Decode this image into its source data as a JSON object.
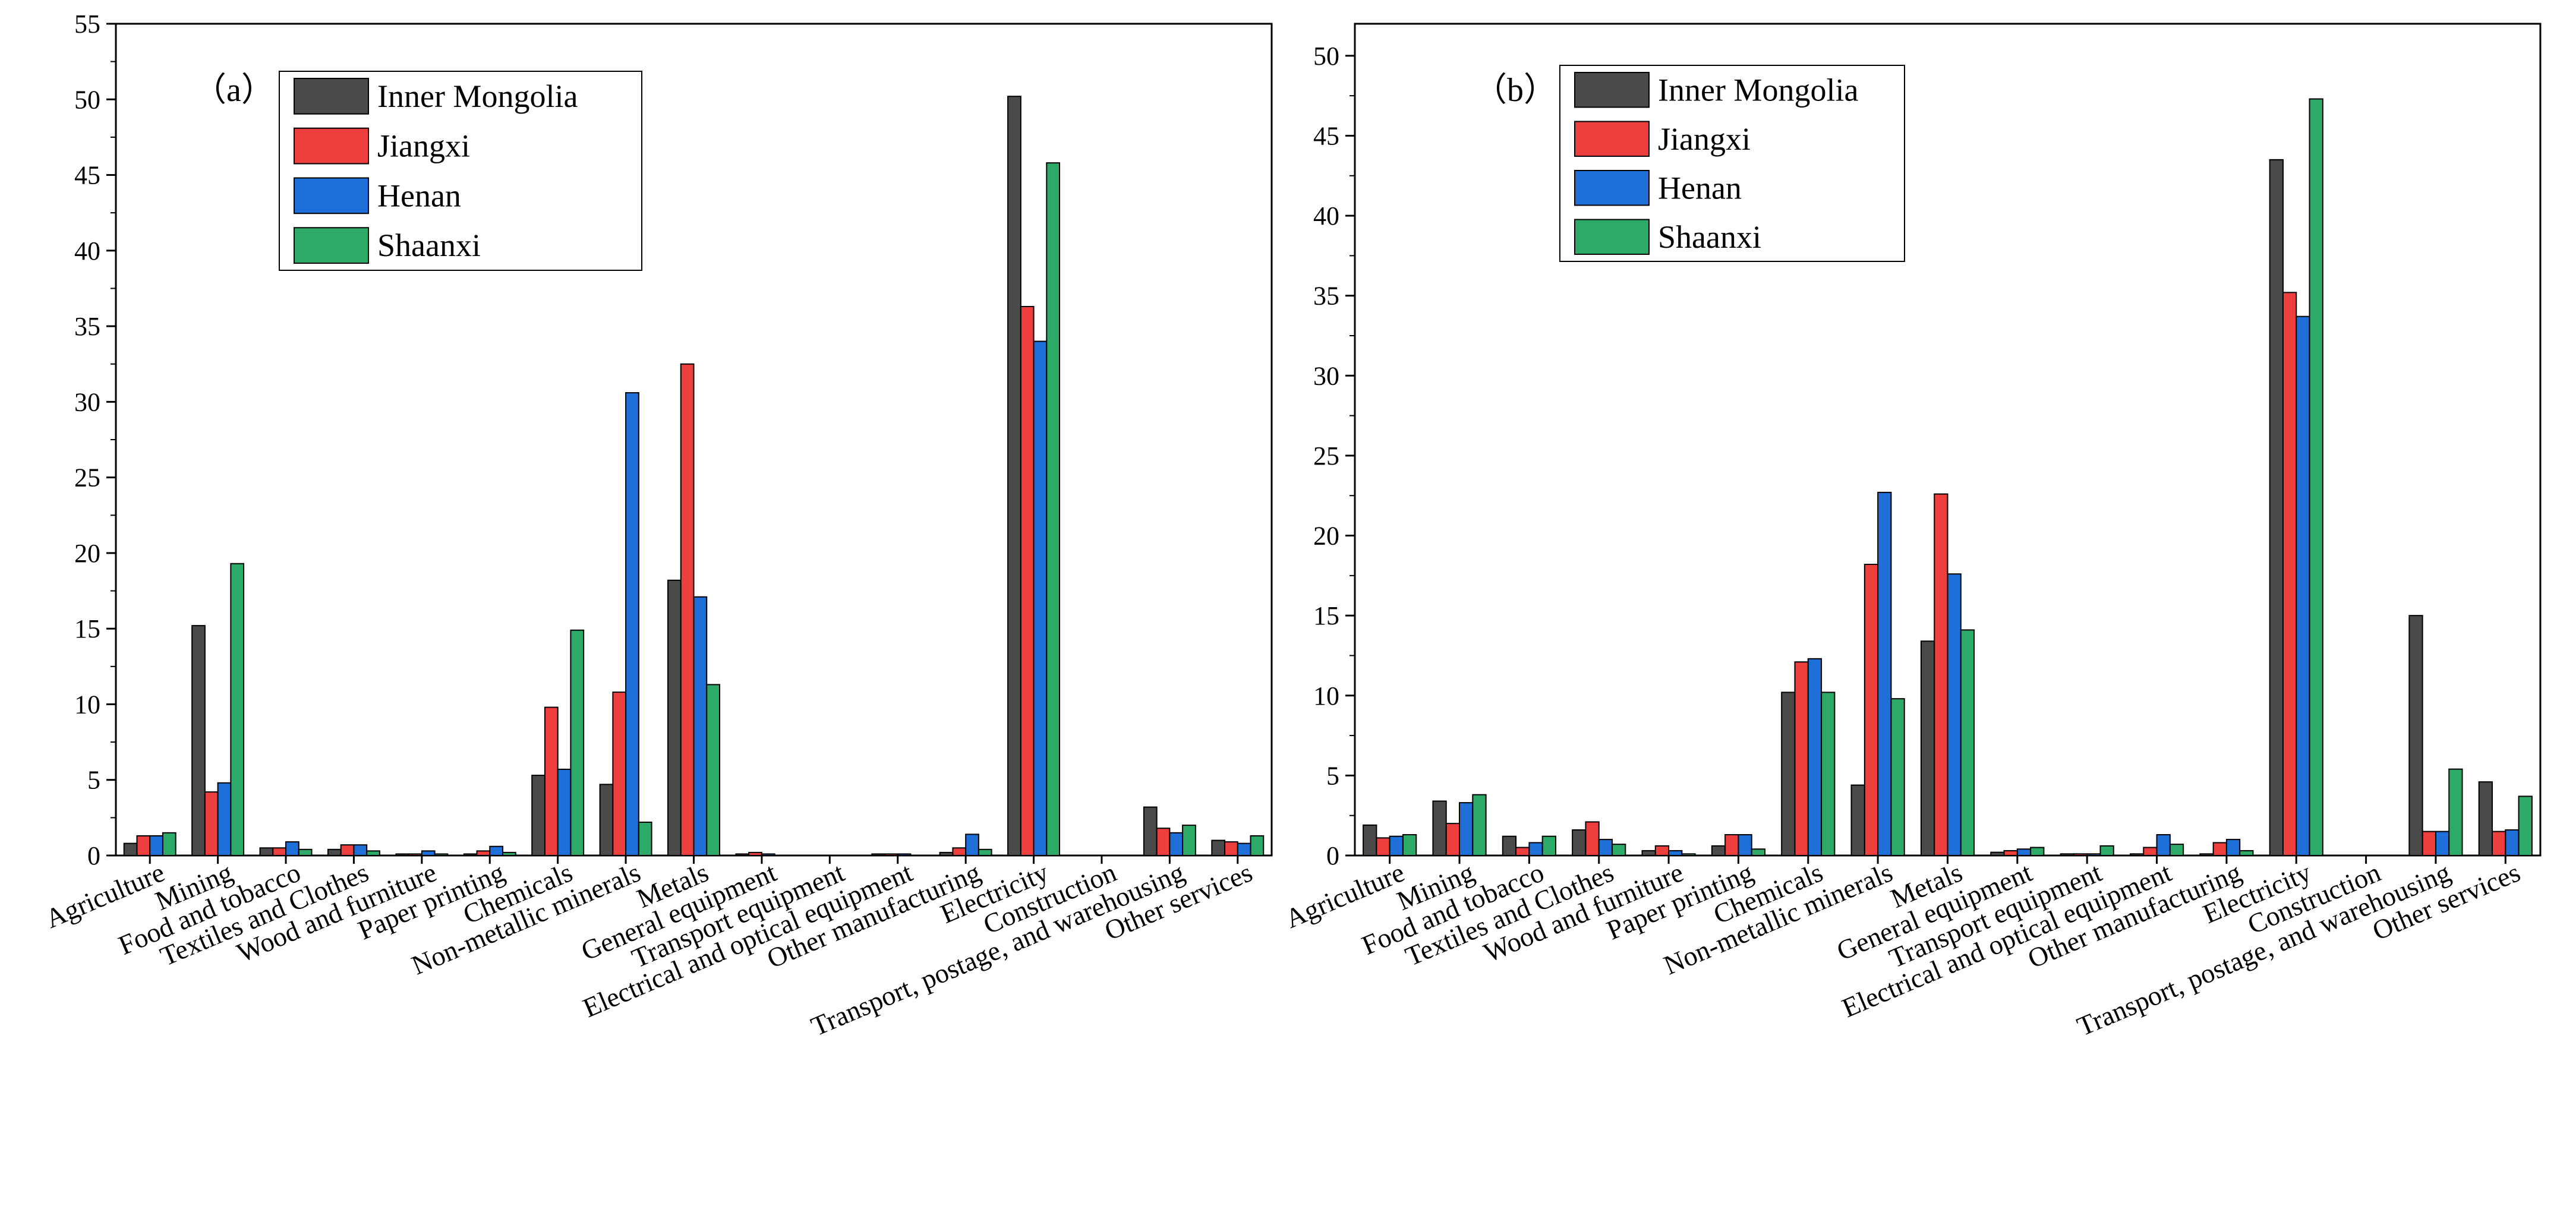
{
  "chart_data": [
    {
      "type": "bar",
      "panel_label": "（a）",
      "categories": [
        "Agriculture",
        "Mining",
        "Food and tobacco",
        "Textiles and Clothes",
        "Wood and furniture",
        "Paper printing",
        "Chemicals",
        "Non-metallic minerals",
        "Metals",
        "General equipment",
        "Transport equipment",
        "Electrical and optical equipment",
        "Other manufacturing",
        "Electricity",
        "Construction",
        "Transport, postage, and warehousing",
        "Other services"
      ],
      "series": [
        {
          "name": "Inner Mongolia",
          "color": "#4a4a4a",
          "values": [
            0.8,
            15.2,
            0.5,
            0.4,
            0.1,
            0.1,
            5.3,
            4.7,
            18.2,
            0.1,
            0.0,
            0.1,
            0.2,
            50.2,
            0.0,
            3.2,
            1.0
          ]
        },
        {
          "name": "Jiangxi",
          "color": "#ee3f3f",
          "values": [
            1.3,
            4.2,
            0.5,
            0.7,
            0.1,
            0.3,
            9.8,
            10.8,
            32.5,
            0.2,
            0.0,
            0.1,
            0.5,
            36.3,
            0.0,
            1.8,
            0.9
          ]
        },
        {
          "name": "Henan",
          "color": "#1f6fd8",
          "values": [
            1.3,
            4.8,
            0.9,
            0.7,
            0.3,
            0.6,
            5.7,
            30.6,
            17.1,
            0.1,
            0.0,
            0.1,
            1.4,
            34.0,
            0.0,
            1.5,
            0.8
          ]
        },
        {
          "name": "Shaanxi",
          "color": "#2eaa68",
          "values": [
            1.5,
            19.3,
            0.4,
            0.3,
            0.1,
            0.2,
            14.9,
            2.2,
            11.3,
            0.0,
            0.0,
            0.0,
            0.4,
            45.8,
            0.0,
            2.0,
            1.3
          ]
        }
      ],
      "ylim": [
        0,
        55
      ],
      "yticks": [
        0,
        5,
        10,
        15,
        20,
        25,
        30,
        35,
        40,
        45,
        50,
        55
      ],
      "legend": "top-left"
    },
    {
      "type": "bar",
      "panel_label": "（b）",
      "categories": [
        "Agriculture",
        "Mining",
        "Food and tobacco",
        "Textiles and Clothes",
        "Wood and furniture",
        "Paper printing",
        "Chemicals",
        "Non-metallic minerals",
        "Metals",
        "General equipment",
        "Transport equipment",
        "Electrical and optical equipment",
        "Other manufacturing",
        "Electricity",
        "Construction",
        "Transport, postage, and warehousing",
        "Other services"
      ],
      "series": [
        {
          "name": "Inner Mongolia",
          "color": "#4a4a4a",
          "values": [
            1.9,
            3.4,
            1.2,
            1.6,
            0.3,
            0.6,
            10.2,
            4.4,
            13.4,
            0.2,
            0.1,
            0.1,
            0.1,
            43.5,
            0.0,
            15.0,
            4.6
          ]
        },
        {
          "name": "Jiangxi",
          "color": "#ee3f3f",
          "values": [
            1.1,
            2.0,
            0.5,
            2.1,
            0.6,
            1.3,
            12.1,
            18.2,
            22.6,
            0.3,
            0.1,
            0.5,
            0.8,
            35.2,
            0.0,
            1.5,
            1.5
          ]
        },
        {
          "name": "Henan",
          "color": "#1f6fd8",
          "values": [
            1.2,
            3.3,
            0.8,
            1.0,
            0.3,
            1.3,
            12.3,
            22.7,
            17.6,
            0.4,
            0.1,
            1.3,
            1.0,
            33.7,
            0.0,
            1.5,
            1.6
          ]
        },
        {
          "name": "Shaanxi",
          "color": "#2eaa68",
          "values": [
            1.3,
            3.8,
            1.2,
            0.7,
            0.1,
            0.4,
            10.2,
            9.8,
            14.1,
            0.5,
            0.6,
            0.7,
            0.3,
            47.3,
            0.0,
            5.4,
            3.7
          ]
        }
      ],
      "ylim": [
        0,
        52
      ],
      "yticks": [
        0,
        5,
        10,
        15,
        20,
        25,
        30,
        35,
        40,
        45,
        50
      ],
      "legend": "top-left"
    }
  ]
}
